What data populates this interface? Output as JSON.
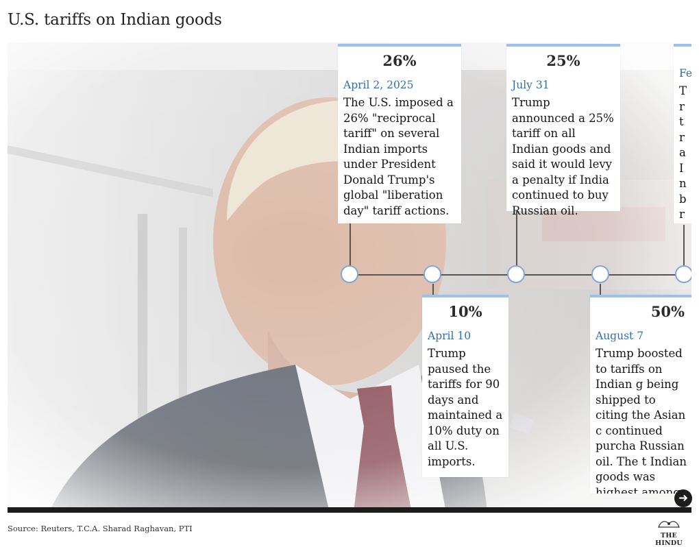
{
  "title": "U.S. tariffs on Indian goods",
  "timeline": [
    {
      "percent": "26%",
      "date": "April 2, 2025",
      "text": "The U.S. imposed a 26% \"reciprocal tariff\" on several Indian imports under President Donald Trump's global \"liberation day\" tariff actions."
    },
    {
      "percent": "10%",
      "date": "April 10",
      "text": "Trump paused the tariffs for 90 days and maintained a 10% duty on all U.S. imports."
    },
    {
      "percent": "25%",
      "date": "July 31",
      "text": "Trump announced a 25% tariff on all Indian goods and said it would levy a penalty if India continued to buy Russian oil."
    },
    {
      "percent": "50%",
      "date": "August 7",
      "text": "Trump boosted to tariffs on Indian g being shipped to citing the Asian c continued purcha Russian oil. The t Indian goods was highest among U. partners."
    },
    {
      "percent": "",
      "date": "Fe",
      "text": "Tr tra In br ta ex ha pr tra"
    }
  ],
  "source": "Source: Reuters, T.C.A. Sharad Raghavan, PTI",
  "logo_text": "THE HINDU",
  "icons": {
    "next": "arrow-right-icon",
    "logo": "the-hindu-logo-icon"
  },
  "colors": {
    "accent": "#2f6fb0",
    "card_border": "#9cc0ef",
    "node_border": "#7fa7d9",
    "line": "#555555"
  }
}
